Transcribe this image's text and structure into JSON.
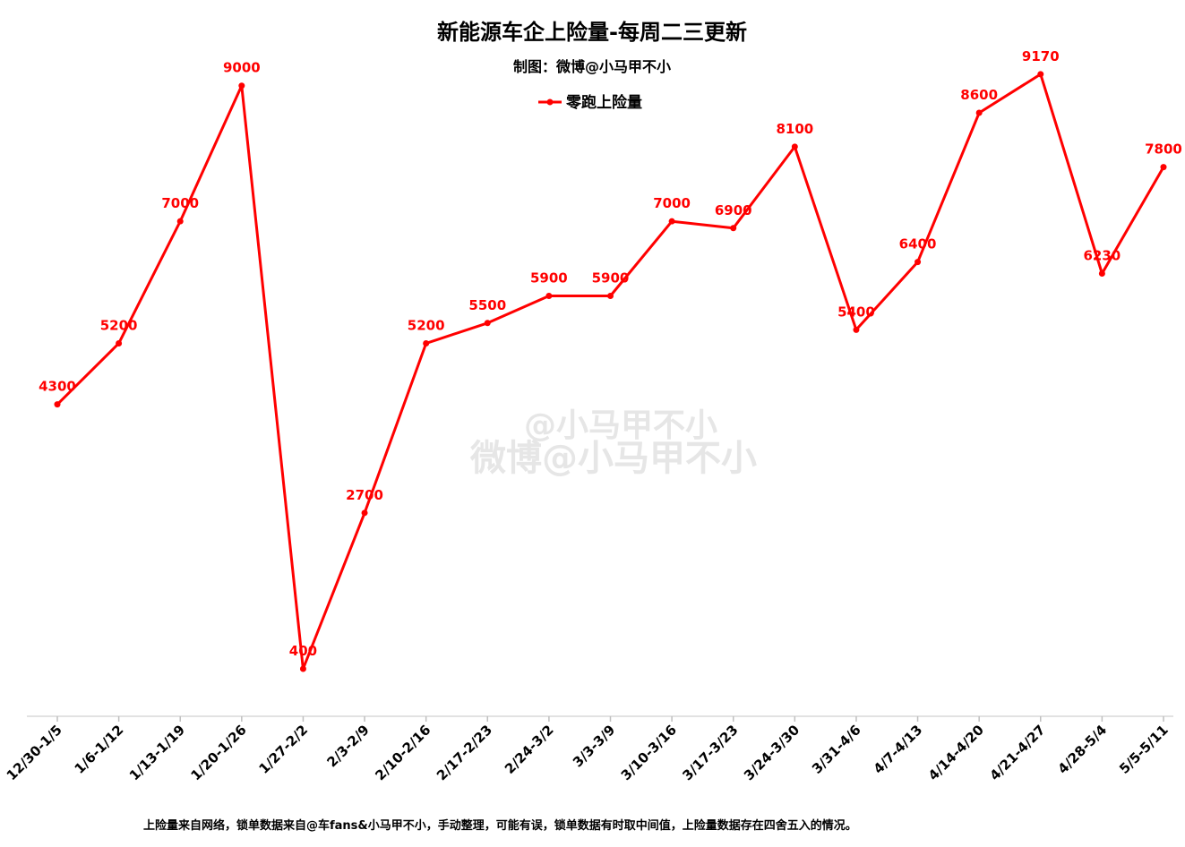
{
  "chart_data": {
    "type": "line",
    "title": "新能源车企上险量-每周二三更新",
    "subtitle": "制图：微博@小马甲不小",
    "categories": [
      "12/30-1/5",
      "1/6-1/12",
      "1/13-1/19",
      "1/20-1/26",
      "1/27-2/2",
      "2/3-2/9",
      "2/10-2/16",
      "2/17-2/23",
      "2/24-3/2",
      "3/3-3/9",
      "3/10-3/16",
      "3/17-3/23",
      "3/24-3/30",
      "3/31-4/6",
      "4/7-4/13",
      "4/14-4/20",
      "4/21-4/27",
      "4/28-5/4",
      "5/5-5/11"
    ],
    "series": [
      {
        "name": "零跑上险量",
        "color": "#ff0000",
        "values": [
          4300,
          5200,
          7000,
          9000,
          400,
          2700,
          5200,
          5500,
          5900,
          5900,
          7000,
          6900,
          8100,
          5400,
          6400,
          8600,
          9170,
          6230,
          7800
        ]
      }
    ],
    "data_labels": [
      "4300",
      "5200",
      "7000",
      "9000",
      "400",
      "2700",
      "5200",
      "5500",
      "5900",
      "5900",
      "7000",
      "6900",
      "8100",
      "5400",
      "6400",
      "8600",
      "9170",
      "6230",
      "7800"
    ],
    "ylim": [
      -300,
      10000
    ],
    "grid": false,
    "legend_position": "top-center",
    "xlabel": "",
    "ylabel": ""
  },
  "watermark": {
    "line1": "@小马甲不小",
    "line2": "微博@小马甲不小"
  },
  "footnote": "上险量来自网络，锁单数据来自@车fans&小马甲不小，手动整理，可能有误，锁单数据有时取中间值，上险量数据存在四舍五入的情况。"
}
